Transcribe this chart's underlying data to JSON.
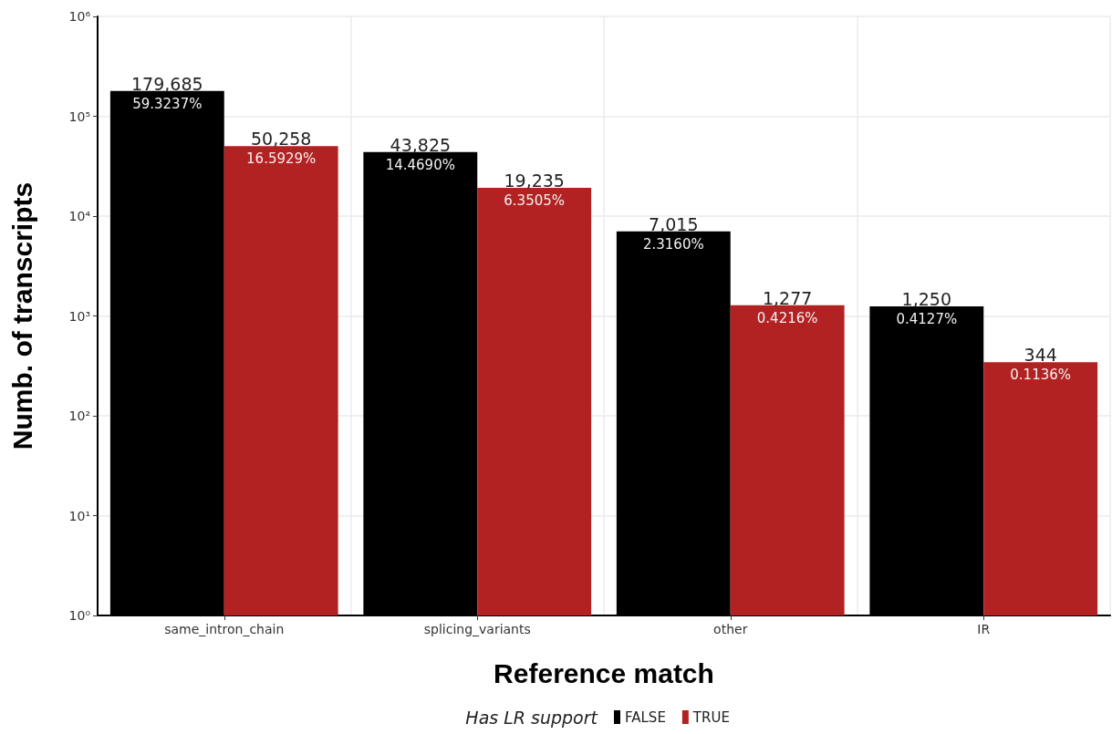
{
  "chart_data": {
    "type": "bar",
    "xlabel": "Reference match",
    "ylabel": "Numb. of transcripts",
    "legend_title": "Has LR support",
    "categories": [
      "same_intron_chain",
      "splicing_variants",
      "other",
      "IR"
    ],
    "series": [
      {
        "name": "FALSE",
        "color": "#000000",
        "values": [
          179685,
          43825,
          7015,
          1250
        ],
        "value_labels": [
          "179,685\n59.3237%",
          "43,825\n14.4690%",
          "7,015\n2.3160%",
          "1,250\n0.4127%"
        ]
      },
      {
        "name": "TRUE",
        "color": "#b22222",
        "values": [
          50258,
          19235,
          1277,
          344
        ],
        "value_labels": [
          "50,258\n16.5929%",
          "19,235\n6.3505%",
          "1,277\n0.4216%",
          "344\n0.1136%"
        ]
      }
    ],
    "log": "y",
    "ylim": [
      1,
      1000000
    ],
    "yticks": [
      {
        "value": 1,
        "label": "10⁰"
      },
      {
        "value": 10,
        "label": "10¹"
      },
      {
        "value": 100,
        "label": "10²"
      },
      {
        "value": 1000,
        "label": "10³"
      },
      {
        "value": 10000,
        "label": "10⁴"
      },
      {
        "value": 100000,
        "label": "10⁵"
      },
      {
        "value": 1000000,
        "label": "10⁶"
      }
    ],
    "grid": true,
    "legend": "bottom"
  }
}
